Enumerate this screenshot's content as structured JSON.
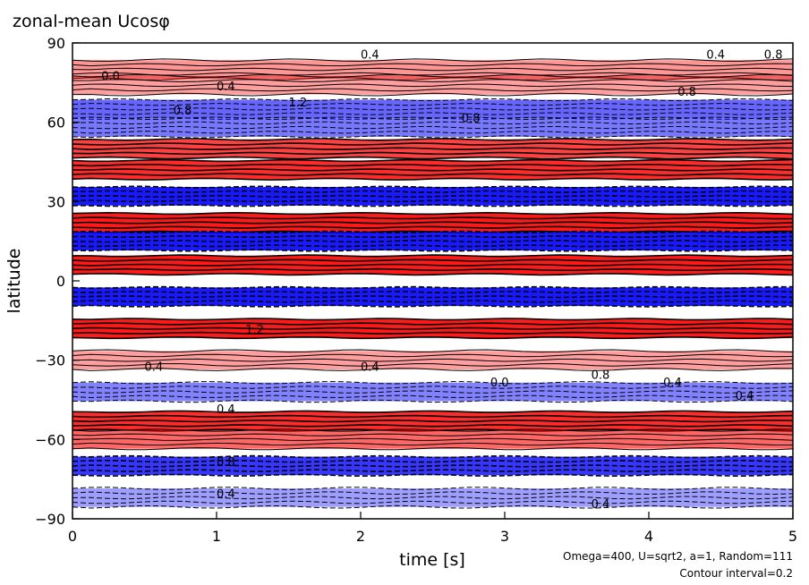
{
  "chart_data": {
    "type": "heatmap",
    "title": "zonal-mean Ucosφ",
    "xlabel": "time [s]",
    "ylabel": "latitude",
    "xlim": [
      0,
      5
    ],
    "ylim": [
      -90,
      90
    ],
    "x_ticks": [
      "0",
      "1",
      "2",
      "3",
      "4",
      "5"
    ],
    "y_ticks": [
      "90",
      "60",
      "30",
      "0",
      "−30",
      "−60",
      "−90"
    ],
    "grid": false,
    "legend": "none",
    "colors": {
      "positive": "#ff0000",
      "negative": "#0000ff",
      "contour": "#000000"
    },
    "annotations": [
      "Omega=400, U=sqrt2, a=1, Random=111",
      "Contour interval=0.2"
    ],
    "bands": [
      {
        "lat": 80,
        "sign": 1,
        "strength": 0.35
      },
      {
        "lat": 74,
        "sign": 1,
        "strength": 0.3
      },
      {
        "lat": 65,
        "sign": -1,
        "strength": 0.6
      },
      {
        "lat": 58,
        "sign": -1,
        "strength": 0.5
      },
      {
        "lat": 50,
        "sign": 1,
        "strength": 0.8
      },
      {
        "lat": 42,
        "sign": 1,
        "strength": 0.9
      },
      {
        "lat": 32,
        "sign": -1,
        "strength": 1.0
      },
      {
        "lat": 22,
        "sign": 1,
        "strength": 1.0
      },
      {
        "lat": 15,
        "sign": -1,
        "strength": 1.0
      },
      {
        "lat": 6,
        "sign": 1,
        "strength": 1.0
      },
      {
        "lat": -6,
        "sign": -1,
        "strength": 1.0
      },
      {
        "lat": -18,
        "sign": 1,
        "strength": 1.0
      },
      {
        "lat": -30,
        "sign": 1,
        "strength": 0.3
      },
      {
        "lat": -42,
        "sign": -1,
        "strength": 0.45
      },
      {
        "lat": -53,
        "sign": 1,
        "strength": 0.9
      },
      {
        "lat": -60,
        "sign": 1,
        "strength": 0.6
      },
      {
        "lat": -70,
        "sign": -1,
        "strength": 0.85
      },
      {
        "lat": -82,
        "sign": -1,
        "strength": 0.3
      }
    ],
    "contour_labels": [
      {
        "t": 0.2,
        "lat": 76,
        "text": "0.0"
      },
      {
        "t": 1.0,
        "lat": 72,
        "text": "0.4"
      },
      {
        "t": 2.0,
        "lat": 84,
        "text": "0.4"
      },
      {
        "t": 0.7,
        "lat": 63,
        "text": "0.8"
      },
      {
        "t": 1.5,
        "lat": 66,
        "text": "1.2"
      },
      {
        "t": 2.7,
        "lat": 60,
        "text": "0.8"
      },
      {
        "t": 4.2,
        "lat": 70,
        "text": "0.8"
      },
      {
        "t": 4.4,
        "lat": 84,
        "text": "0.4"
      },
      {
        "t": 4.8,
        "lat": 84,
        "text": "0.8"
      },
      {
        "t": 0.5,
        "lat": -34,
        "text": "0.4"
      },
      {
        "t": 1.2,
        "lat": -20,
        "text": "1.2"
      },
      {
        "t": 2.0,
        "lat": -34,
        "text": "0.4"
      },
      {
        "t": 2.9,
        "lat": -40,
        "text": "0.0"
      },
      {
        "t": 3.6,
        "lat": -37,
        "text": "0.8"
      },
      {
        "t": 4.1,
        "lat": -40,
        "text": "0.4"
      },
      {
        "t": 4.6,
        "lat": -45,
        "text": "0.4"
      },
      {
        "t": 1.0,
        "lat": -50,
        "text": "0.4"
      },
      {
        "t": 1.0,
        "lat": -70,
        "text": "0.8"
      },
      {
        "t": 1.0,
        "lat": -82,
        "text": "0.4"
      },
      {
        "t": 3.6,
        "lat": -86,
        "text": "0.4"
      }
    ]
  }
}
